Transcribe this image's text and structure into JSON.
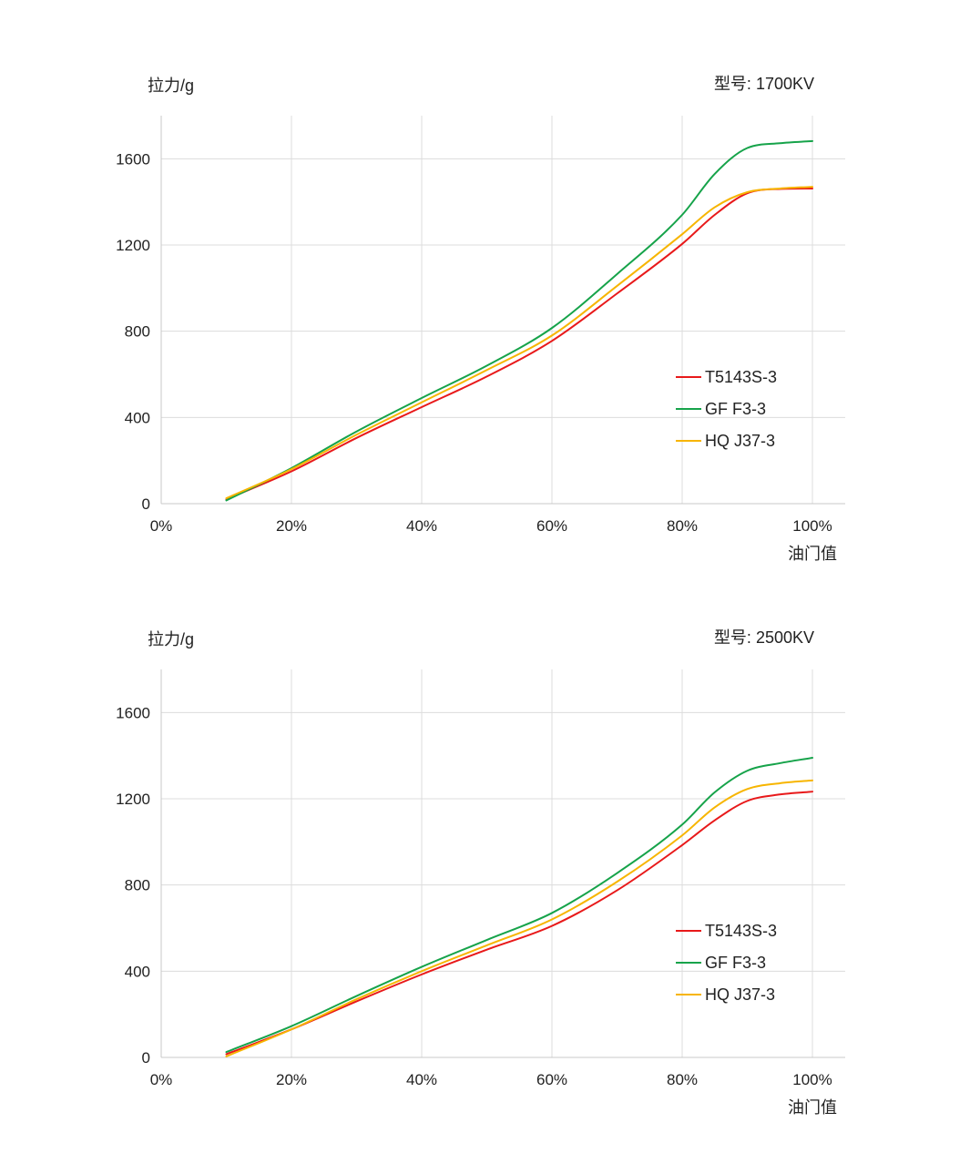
{
  "chart_data": [
    {
      "type": "line",
      "ylabel": "拉力/g",
      "model_label": "型号: 1700KV",
      "xlabel": "油门值",
      "xlim": [
        0,
        100
      ],
      "ylim": [
        0,
        1800
      ],
      "x_ticks": [
        "0%",
        "20%",
        "40%",
        "60%",
        "80%",
        "100%"
      ],
      "y_ticks": [
        "0",
        "400",
        "800",
        "1200",
        "1600"
      ],
      "grid": true,
      "legend_position": "right-middle",
      "x": [
        10,
        20,
        30,
        40,
        50,
        60,
        70,
        80,
        85,
        90,
        95,
        100
      ],
      "series": [
        {
          "name": "T5143S-3",
          "color": "#e8191a",
          "values": [
            20,
            150,
            305,
            448,
            590,
            755,
            975,
            1205,
            1340,
            1440,
            1460,
            1462
          ]
        },
        {
          "name": "GF F3-3",
          "color": "#16a34a",
          "values": [
            15,
            165,
            335,
            490,
            640,
            815,
            1065,
            1340,
            1530,
            1650,
            1672,
            1682
          ]
        },
        {
          "name": "HQ J37-3",
          "color": "#f7b500",
          "values": [
            25,
            160,
            320,
            470,
            620,
            780,
            1010,
            1250,
            1375,
            1445,
            1462,
            1470
          ]
        }
      ]
    },
    {
      "type": "line",
      "ylabel": "拉力/g",
      "model_label": "型号: 2500KV",
      "xlabel": "油门值",
      "xlim": [
        0,
        100
      ],
      "ylim": [
        0,
        1800
      ],
      "x_ticks": [
        "0%",
        "20%",
        "40%",
        "60%",
        "80%",
        "100%"
      ],
      "y_ticks": [
        "0",
        "400",
        "800",
        "1200",
        "1600"
      ],
      "grid": true,
      "legend_position": "right-middle",
      "x": [
        10,
        20,
        30,
        40,
        50,
        60,
        70,
        80,
        85,
        90,
        95,
        100
      ],
      "series": [
        {
          "name": "T5143S-3",
          "color": "#e8191a",
          "values": [
            15,
            130,
            260,
            385,
            500,
            610,
            775,
            985,
            1100,
            1190,
            1220,
            1233
          ]
        },
        {
          "name": "GF F3-3",
          "color": "#16a34a",
          "values": [
            25,
            145,
            285,
            420,
            545,
            670,
            855,
            1080,
            1230,
            1330,
            1365,
            1390
          ]
        },
        {
          "name": "HQ J37-3",
          "color": "#f7b500",
          "values": [
            5,
            130,
            270,
            400,
            520,
            640,
            815,
            1030,
            1160,
            1245,
            1272,
            1285
          ]
        }
      ]
    }
  ]
}
